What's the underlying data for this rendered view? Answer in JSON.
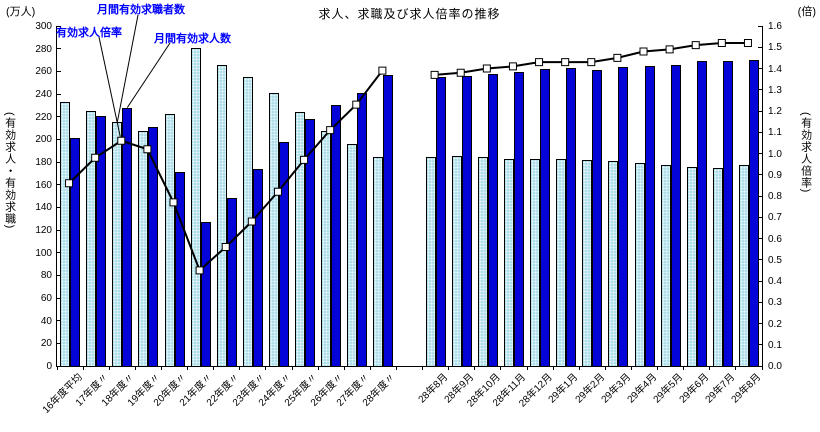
{
  "title": "求人、求職及び求人倍率の推移",
  "units": {
    "left": "(万人)",
    "right": "(倍)"
  },
  "axis_titles": {
    "left": "(有効求人・有効求職)",
    "right": "(有効求人倍率)"
  },
  "annotations": {
    "seekers": "月間有効求職者数",
    "ratio": "有効求人倍率",
    "offers": "月間有効求人数"
  },
  "colors": {
    "seekers_bar": "#ADDEE9",
    "offers_bar": "#0404D8",
    "ratio_line": "#000000",
    "marker_fill": "#FFFFFF",
    "annotation_text": "#0000FF",
    "axis": "#000000"
  },
  "chart_data": {
    "type": "bar+line combo",
    "title": "求人、求職及び求人倍率の推移",
    "left_axis": {
      "label": "(有効求人・有効求職)",
      "unit": "(万人)",
      "min": 0,
      "max": 300,
      "step": 20
    },
    "right_axis": {
      "label": "(有効求人倍率)",
      "unit": "(倍)",
      "min": 0,
      "max": 1.6,
      "step": 0.1
    },
    "grid": false,
    "legend_position": "annotated-callouts-top-left",
    "groups": [
      {
        "name": "annual",
        "categories": [
          "16年度平均",
          "17年度〃",
          "18年度〃",
          "19年度〃",
          "20年度〃",
          "21年度〃",
          "22年度〃",
          "23年度〃",
          "24年度〃",
          "25年度〃",
          "26年度〃",
          "27年度〃",
          "28年度〃"
        ],
        "series": [
          {
            "name": "月間有効求職者数",
            "type": "bar",
            "axis": "left",
            "values": [
              233,
              225,
              215,
              207,
              222,
              281,
              266,
              255,
              241,
              224,
              207,
              196,
              184
            ]
          },
          {
            "name": "月間有効求人数",
            "type": "bar",
            "axis": "left",
            "values": [
              201,
              221,
              228,
              211,
              171,
              127,
              148,
              174,
              198,
              218,
              230,
              241,
              257
            ]
          },
          {
            "name": "有効求人倍率",
            "type": "line",
            "axis": "right",
            "values": [
              0.86,
              0.98,
              1.06,
              1.02,
              0.77,
              0.45,
              0.56,
              0.68,
              0.82,
              0.97,
              1.11,
              1.23,
              1.39
            ]
          }
        ]
      },
      {
        "name": "monthly",
        "categories": [
          "28年8月",
          "28年9月",
          "28年10月",
          "28年11月",
          "28年12月",
          "29年1月",
          "29年2月",
          "29年3月",
          "29年4月",
          "29年5月",
          "29年6月",
          "29年7月",
          "29年8月"
        ],
        "series": [
          {
            "name": "月間有効求職者数",
            "type": "bar",
            "axis": "left",
            "values": [
              184,
              185,
              184,
              183,
              183,
              183,
              182,
              181,
              179,
              177,
              176,
              175,
              177
            ]
          },
          {
            "name": "月間有効求人数",
            "type": "bar",
            "axis": "left",
            "values": [
              255,
              256,
              258,
              259,
              262,
              263,
              261,
              264,
              265,
              266,
              269,
              269,
              270
            ]
          },
          {
            "name": "有効求人倍率",
            "type": "line",
            "axis": "right",
            "values": [
              1.37,
              1.38,
              1.4,
              1.41,
              1.43,
              1.43,
              1.43,
              1.45,
              1.48,
              1.49,
              1.51,
              1.52,
              1.52
            ]
          }
        ]
      }
    ]
  }
}
